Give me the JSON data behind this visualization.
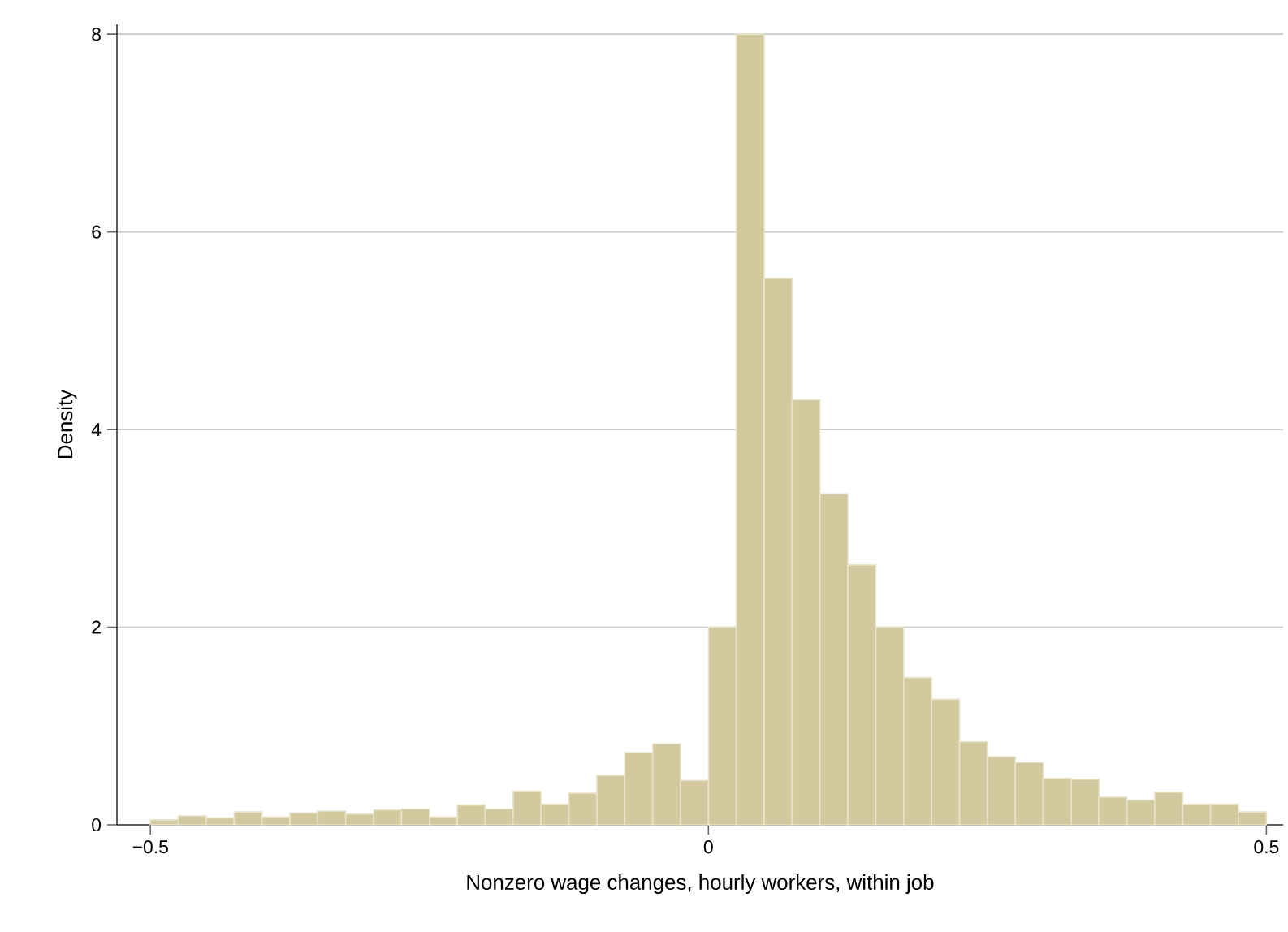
{
  "chart_data": {
    "type": "histogram",
    "xlabel": "Nonzero wage changes, hourly workers, within job",
    "ylabel": "Density",
    "bins": [
      -0.5,
      -0.475,
      -0.45,
      -0.425,
      -0.4,
      -0.375,
      -0.35,
      -0.325,
      -0.3,
      -0.275,
      -0.25,
      -0.225,
      -0.2,
      -0.175,
      -0.15,
      -0.125,
      -0.1,
      -0.075,
      -0.05,
      -0.025,
      0,
      0.025,
      0.05,
      0.075,
      0.1,
      0.125,
      0.15,
      0.175,
      0.2,
      0.225,
      0.25,
      0.275,
      0.3,
      0.325,
      0.35,
      0.375,
      0.4,
      0.425,
      0.45,
      0.475,
      0.5
    ],
    "values": [
      0.05,
      0.09,
      0.07,
      0.13,
      0.08,
      0.12,
      0.14,
      0.11,
      0.15,
      0.16,
      0.08,
      0.2,
      0.16,
      0.34,
      0.21,
      0.32,
      0.5,
      0.73,
      0.82,
      0.45,
      2.0,
      8.0,
      5.53,
      4.3,
      3.35,
      2.63,
      2.0,
      1.49,
      1.27,
      0.84,
      0.69,
      0.63,
      0.47,
      0.46,
      0.28,
      0.25,
      0.33,
      0.21,
      0.21,
      0.13
    ],
    "color": "#d2c99e",
    "xlim": [
      -0.53,
      0.515
    ],
    "ylim": [
      0,
      8.1
    ],
    "xticks": [
      {
        "value": -0.5,
        "label": "−0.5"
      },
      0,
      0.5
    ],
    "yticks": [
      0,
      2,
      4,
      6,
      8
    ],
    "grid": "y"
  }
}
